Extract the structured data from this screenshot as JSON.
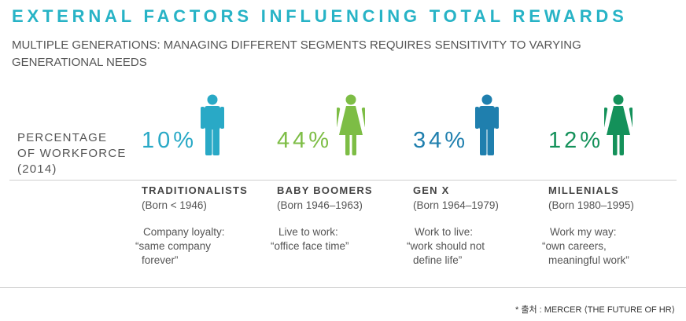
{
  "title": "EXTERNAL FACTORS INFLUENCING TOTAL REWARDS",
  "subtitle": "MULTIPLE GENERATIONS: MANAGING DIFFERENT SEGMENTS REQUIRES SENSITIVITY TO VARYING GENERATIONAL NEEDS",
  "percentage_label": [
    "PERCENTAGE",
    "OF WORKFORCE",
    "(2014)"
  ],
  "colors": {
    "title": "#27b3c6",
    "light_blue": "#29a9c6",
    "light_green": "#7dbd45",
    "dark_blue": "#1f7fae",
    "dark_green": "#14915a"
  },
  "generations": [
    {
      "percent": "10%",
      "icon": "male-person-icon",
      "name": "TRADITIONALISTS",
      "born": "(Born < 1946)",
      "note": [
        "Company loyalty:",
        "“same company",
        "forever”"
      ]
    },
    {
      "percent": "44%",
      "icon": "female-person-icon",
      "name": "BABY BOOMERS",
      "born": "(Born 1946–1963)",
      "note": [
        "Live to work:",
        "“office face time”"
      ]
    },
    {
      "percent": "34%",
      "icon": "male-person-icon",
      "name": "GEN X",
      "born": "(Born 1964–1979)",
      "note": [
        "Work to live:",
        "“work should not",
        "define life”"
      ]
    },
    {
      "percent": "12%",
      "icon": "female-person-icon",
      "name": "MILLENIALS",
      "born": "(Born 1980–1995)",
      "note": [
        "Work my way:",
        "“own careers,",
        "meaningful work”"
      ]
    }
  ],
  "source": "* 출처 : MERCER ⟨THE FUTURE OF HR⟩"
}
